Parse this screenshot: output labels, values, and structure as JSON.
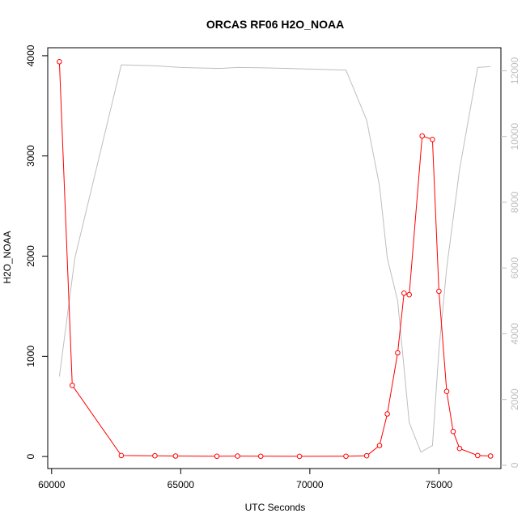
{
  "chart_data": {
    "type": "line",
    "title": "ORCAS RF06 H2O_NOAA",
    "xlabel": "UTC Seconds",
    "ylabel": "H2O_NOAA",
    "xlim": [
      59850,
      77400
    ],
    "ylim": [
      -120,
      4080
    ],
    "y2lim": [
      -100,
      12700
    ],
    "x_ticks": [
      60000,
      65000,
      70000,
      75000
    ],
    "y_ticks": [
      0,
      1000,
      2000,
      3000,
      4000
    ],
    "y2_ticks": [
      0,
      2000,
      4000,
      6000,
      8000,
      10000,
      12000
    ],
    "series": [
      {
        "axis": "left",
        "color": "#ff0000",
        "markers": true,
        "x": [
          60300,
          60800,
          62700,
          64000,
          64800,
          66400,
          67200,
          68100,
          69600,
          71400,
          72200,
          72700,
          73000,
          73400,
          73650,
          73850,
          74350,
          74750,
          75000,
          75300,
          75550,
          75800,
          76500,
          77000
        ],
        "y": [
          3940,
          710,
          10,
          8,
          5,
          3,
          4,
          3,
          2,
          3,
          8,
          110,
          425,
          1035,
          1630,
          1615,
          3200,
          3165,
          1650,
          650,
          250,
          80,
          10,
          5
        ]
      },
      {
        "axis": "right",
        "color": "#bebebe",
        "markers": false,
        "x": [
          60300,
          60900,
          62700,
          64000,
          65000,
          66500,
          67200,
          68100,
          69600,
          71400,
          72200,
          72700,
          73000,
          73400,
          73850,
          74300,
          74750,
          75000,
          75300,
          75800,
          76500,
          77000
        ],
        "y": [
          2700,
          6300,
          12180,
          12150,
          12100,
          12070,
          12100,
          12090,
          12060,
          12020,
          10500,
          8500,
          6300,
          5000,
          1300,
          400,
          600,
          3500,
          6000,
          9000,
          12100,
          12130
        ]
      }
    ]
  }
}
